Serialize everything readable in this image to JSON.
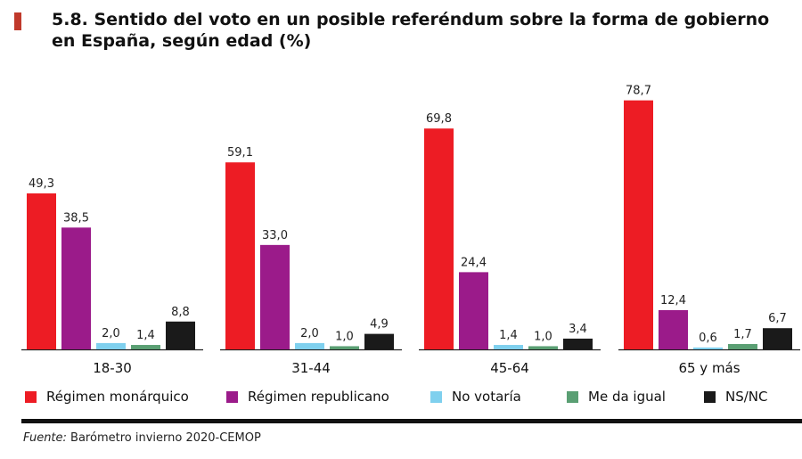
{
  "header": {
    "title": "5.8. Sentido del voto en un posible referéndum sobre la forma de gobierno en España, según edad (%)"
  },
  "chart_data": {
    "type": "bar",
    "title": "5.8. Sentido del voto en un posible referéndum sobre la forma de gobierno en España, según edad (%)",
    "categories": [
      "18-30",
      "31-44",
      "45-64",
      "65 y más"
    ],
    "series": [
      {
        "name": "Régimen monárquico",
        "color": "#ed1c24",
        "values": [
          49.3,
          59.1,
          69.8,
          78.7
        ],
        "labels": [
          "49,3",
          "59,1",
          "69,8",
          "78,7"
        ]
      },
      {
        "name": "Régimen republicano",
        "color": "#9b1b8a",
        "values": [
          38.5,
          33.0,
          24.4,
          12.4
        ],
        "labels": [
          "38,5",
          "33,0",
          "24,4",
          "12,4"
        ]
      },
      {
        "name": "No votaría",
        "color": "#7fd0ee",
        "values": [
          2.0,
          2.0,
          1.4,
          0.6
        ],
        "labels": [
          "2,0",
          "2,0",
          "1,4",
          "0,6"
        ]
      },
      {
        "name": "Me da igual",
        "color": "#5a9f73",
        "values": [
          1.4,
          1.0,
          1.0,
          1.7
        ],
        "labels": [
          "1,4",
          "1,0",
          "1,0",
          "1,7"
        ]
      },
      {
        "name": "NS/NC",
        "color": "#1a1a1a",
        "values": [
          8.8,
          4.9,
          3.4,
          6.7
        ],
        "labels": [
          "8,8",
          "4,9",
          "3,4",
          "6,7"
        ]
      }
    ],
    "ylim": [
      0,
      100
    ],
    "grid": false,
    "legend_position": "bottom"
  },
  "source": {
    "label": "Fuente:",
    "text": "Barómetro invierno 2020-CEMOP"
  }
}
